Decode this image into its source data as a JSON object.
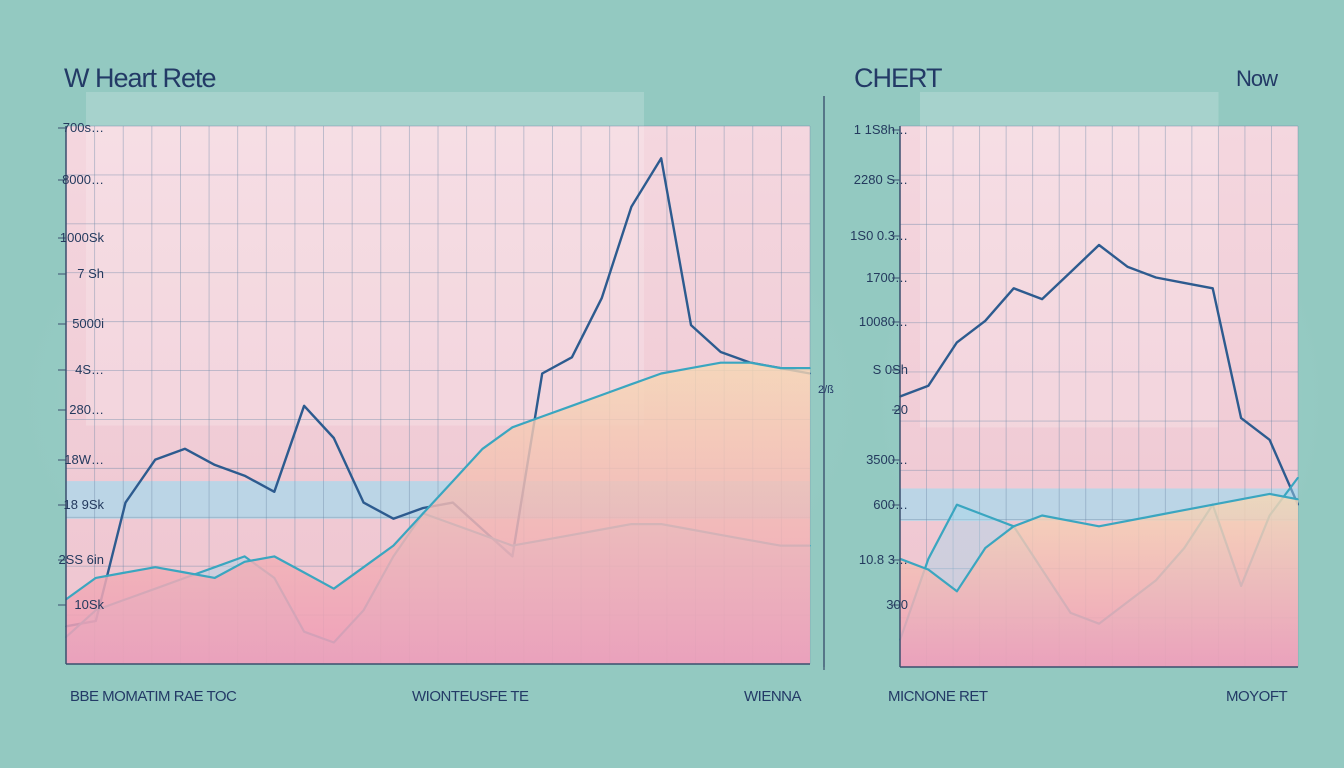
{
  "colors": {
    "background": "#93c9c1",
    "plot_pink": "#f2cdd6",
    "grid": "#6f8aa8",
    "dark_line": "#2d5b8f",
    "light_line": "#3aa6c0",
    "warm_band": "#f6d8b4",
    "pink_fill": "#ef9ab6",
    "blue_band": "#a9d8ec",
    "text": "#233a66"
  },
  "chart_data": [
    {
      "type": "line",
      "title": "W Heart Rete",
      "yticks": [
        "700s…",
        "8000…",
        "1000Sk",
        "7 Sh",
        "5000i",
        "4S…",
        "280…",
        "18W…",
        "18 9Sk",
        "2SS 6in",
        "10Sk"
      ],
      "xlabels": [
        "BBE MOMATIM RAE TOC",
        "WIONTEUSFE TE",
        "WIENNA"
      ],
      "side_mark": "2/ß",
      "x": [
        0,
        4,
        8,
        12,
        16,
        20,
        24,
        28,
        32,
        36,
        40,
        44,
        48,
        52,
        56,
        60,
        64,
        68,
        72,
        76,
        80,
        84,
        88,
        92,
        96,
        100
      ],
      "ylim": [
        0,
        100
      ],
      "series": [
        {
          "values": [
            7,
            8,
            30,
            38,
            40,
            37,
            35,
            32,
            48,
            42,
            30,
            27,
            29,
            30,
            25,
            20,
            54,
            57,
            68,
            85,
            94,
            63,
            58,
            56,
            55,
            54
          ]
        },
        {
          "values": [
            5,
            10,
            12,
            14,
            16,
            18,
            20,
            16,
            6,
            4,
            10,
            20,
            28,
            26,
            24,
            22,
            23,
            24,
            25,
            26,
            26,
            25,
            24,
            23,
            22,
            22
          ]
        },
        {
          "values": [
            12,
            16,
            17,
            18,
            17,
            16,
            19,
            20,
            17,
            14,
            18,
            22,
            28,
            34,
            40,
            44,
            46,
            48,
            50,
            52,
            54,
            55,
            56,
            56,
            55,
            55
          ]
        }
      ]
    },
    {
      "type": "line",
      "title": "CHERT",
      "corner_label": "Now",
      "yticks": [
        "1 1S8h…",
        "2280 S…",
        "1S0 0.3…",
        "1700…",
        "10080…",
        "S 0Sh",
        "20",
        "3500…",
        "600…",
        "10.8 3…",
        "300"
      ],
      "xlabels": [
        "MICNONE RET",
        "MOYOFT"
      ],
      "x": [
        0,
        7,
        14,
        21,
        28,
        35,
        42,
        49,
        56,
        63,
        70,
        77,
        84,
        91,
        98
      ],
      "ylim": [
        0,
        100
      ],
      "series": [
        {
          "values": [
            50,
            52,
            60,
            64,
            70,
            68,
            73,
            78,
            74,
            72,
            71,
            70,
            46,
            42,
            30
          ]
        },
        {
          "values": [
            5,
            20,
            30,
            28,
            26,
            18,
            10,
            8,
            12,
            16,
            22,
            30,
            15,
            28,
            35
          ]
        },
        {
          "values": [
            20,
            18,
            14,
            22,
            26,
            28,
            27,
            26,
            27,
            28,
            29,
            30,
            31,
            32,
            31
          ]
        }
      ]
    }
  ]
}
